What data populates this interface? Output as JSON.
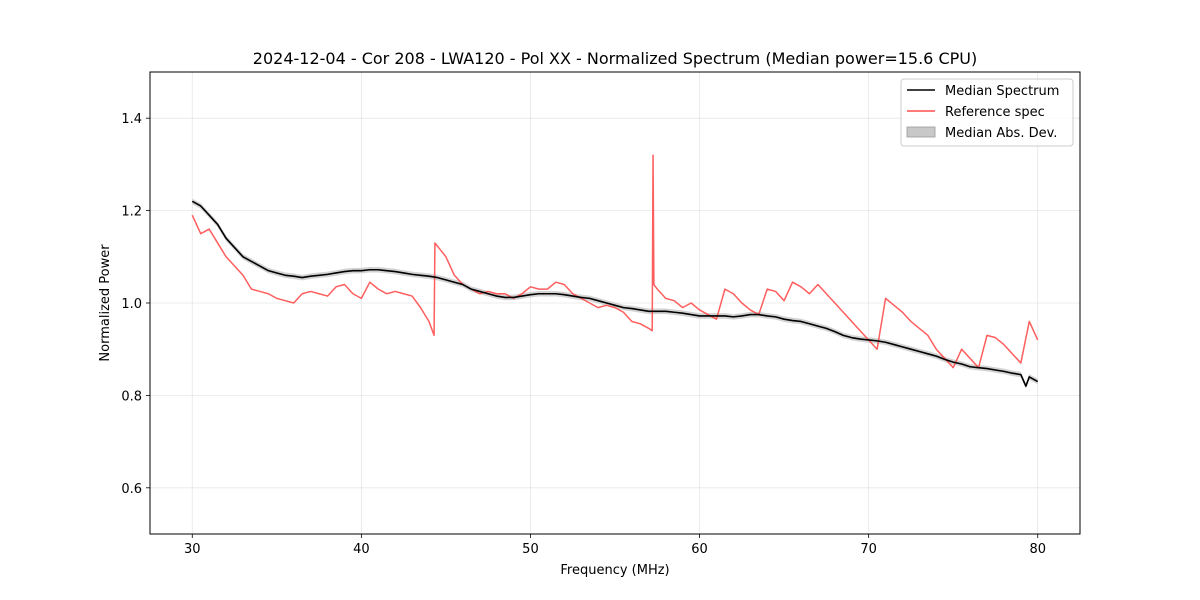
{
  "chart_data": {
    "type": "line",
    "title": "2024-12-04 - Cor 208 - LWA120 - Pol XX - Normalized Spectrum (Median power=15.6 CPU)",
    "xlabel": "Frequency (MHz)",
    "ylabel": "Normalized Power",
    "xlim": [
      27.5,
      82.5
    ],
    "ylim": [
      0.5,
      1.5
    ],
    "xticks": [
      30,
      40,
      50,
      60,
      70,
      80
    ],
    "yticks": [
      0.6,
      0.8,
      1.0,
      1.2,
      1.4
    ],
    "xtick_labels": [
      "30",
      "40",
      "50",
      "60",
      "70",
      "80"
    ],
    "ytick_labels": [
      "0.6",
      "0.8",
      "1.0",
      "1.2",
      "1.4"
    ],
    "grid": true,
    "legend_position": "top-right",
    "legend": [
      "Median Spectrum",
      "Reference spec",
      "Median Abs. Dev."
    ],
    "series": [
      {
        "name": "Median Spectrum",
        "color": "#000000",
        "x": [
          30.0,
          30.5,
          31.0,
          31.5,
          32.0,
          32.5,
          33.0,
          33.5,
          34.0,
          34.5,
          35.0,
          35.5,
          36.0,
          36.5,
          37.0,
          37.5,
          38.0,
          38.5,
          39.0,
          39.5,
          40.0,
          40.5,
          41.0,
          41.5,
          42.0,
          42.5,
          43.0,
          43.5,
          44.0,
          44.5,
          45.0,
          45.5,
          46.0,
          46.5,
          47.0,
          47.5,
          48.0,
          48.5,
          49.0,
          49.5,
          50.0,
          50.5,
          51.0,
          51.5,
          52.0,
          52.5,
          53.0,
          53.5,
          54.0,
          54.5,
          55.0,
          55.5,
          56.0,
          56.5,
          57.0,
          57.5,
          58.0,
          58.5,
          59.0,
          59.5,
          60.0,
          60.5,
          61.0,
          61.5,
          62.0,
          62.5,
          63.0,
          63.5,
          64.0,
          64.5,
          65.0,
          65.5,
          66.0,
          66.5,
          67.0,
          67.5,
          68.0,
          68.5,
          69.0,
          69.5,
          70.0,
          70.5,
          71.0,
          71.5,
          72.0,
          72.5,
          73.0,
          73.5,
          74.0,
          74.5,
          75.0,
          75.5,
          76.0,
          76.5,
          77.0,
          77.5,
          78.0,
          78.5,
          79.0,
          79.3,
          79.5,
          80.0
        ],
        "values": [
          1.22,
          1.21,
          1.19,
          1.17,
          1.14,
          1.12,
          1.1,
          1.09,
          1.08,
          1.07,
          1.065,
          1.06,
          1.058,
          1.055,
          1.058,
          1.06,
          1.062,
          1.065,
          1.068,
          1.07,
          1.07,
          1.072,
          1.072,
          1.07,
          1.068,
          1.065,
          1.062,
          1.06,
          1.058,
          1.055,
          1.05,
          1.045,
          1.04,
          1.03,
          1.025,
          1.02,
          1.015,
          1.012,
          1.012,
          1.015,
          1.018,
          1.02,
          1.02,
          1.02,
          1.018,
          1.015,
          1.012,
          1.01,
          1.005,
          1.0,
          0.995,
          0.99,
          0.988,
          0.985,
          0.982,
          0.982,
          0.982,
          0.98,
          0.978,
          0.975,
          0.972,
          0.972,
          0.972,
          0.972,
          0.97,
          0.972,
          0.975,
          0.975,
          0.972,
          0.97,
          0.965,
          0.962,
          0.96,
          0.955,
          0.95,
          0.945,
          0.938,
          0.93,
          0.925,
          0.922,
          0.92,
          0.918,
          0.915,
          0.91,
          0.905,
          0.9,
          0.895,
          0.89,
          0.885,
          0.878,
          0.872,
          0.868,
          0.862,
          0.86,
          0.858,
          0.855,
          0.852,
          0.848,
          0.845,
          0.82,
          0.84,
          0.83
        ]
      },
      {
        "name": "Reference spec",
        "color": "#ff4d4d",
        "x": [
          30.0,
          30.5,
          31.0,
          31.5,
          32.0,
          32.5,
          33.0,
          33.5,
          34.0,
          34.5,
          35.0,
          35.5,
          36.0,
          36.5,
          37.0,
          37.5,
          38.0,
          38.5,
          39.0,
          39.5,
          40.0,
          40.5,
          41.0,
          41.5,
          42.0,
          42.5,
          43.0,
          43.5,
          44.0,
          44.3,
          44.35,
          45.0,
          45.5,
          46.0,
          46.5,
          47.0,
          47.5,
          48.0,
          48.5,
          49.0,
          49.5,
          50.0,
          50.5,
          51.0,
          51.5,
          52.0,
          52.5,
          53.0,
          53.5,
          54.0,
          54.5,
          55.0,
          55.5,
          56.0,
          56.5,
          57.0,
          57.2,
          57.25,
          57.3,
          57.5,
          58.0,
          58.5,
          59.0,
          59.5,
          60.0,
          60.5,
          61.0,
          61.5,
          62.0,
          62.5,
          63.0,
          63.5,
          64.0,
          64.5,
          65.0,
          65.5,
          66.0,
          66.5,
          67.0,
          67.5,
          68.0,
          68.5,
          69.0,
          69.5,
          70.0,
          70.5,
          71.0,
          71.5,
          72.0,
          72.5,
          73.0,
          73.5,
          74.0,
          74.5,
          75.0,
          75.5,
          76.0,
          76.5,
          77.0,
          77.5,
          78.0,
          78.5,
          79.0,
          79.5,
          80.0
        ],
        "values": [
          1.19,
          1.15,
          1.16,
          1.13,
          1.1,
          1.08,
          1.06,
          1.03,
          1.025,
          1.02,
          1.01,
          1.005,
          1.0,
          1.02,
          1.025,
          1.02,
          1.015,
          1.035,
          1.04,
          1.02,
          1.01,
          1.045,
          1.03,
          1.02,
          1.025,
          1.02,
          1.015,
          0.99,
          0.96,
          0.93,
          1.13,
          1.1,
          1.06,
          1.04,
          1.03,
          1.02,
          1.025,
          1.02,
          1.02,
          1.01,
          1.02,
          1.035,
          1.03,
          1.03,
          1.045,
          1.04,
          1.02,
          1.01,
          1.0,
          0.99,
          0.995,
          0.99,
          0.98,
          0.96,
          0.955,
          0.945,
          0.94,
          1.32,
          1.04,
          1.03,
          1.01,
          1.005,
          0.99,
          1.0,
          0.985,
          0.975,
          0.965,
          1.03,
          1.02,
          1.0,
          0.985,
          0.975,
          1.03,
          1.025,
          1.005,
          1.045,
          1.035,
          1.02,
          1.04,
          1.02,
          1.0,
          0.98,
          0.96,
          0.94,
          0.92,
          0.9,
          1.01,
          0.995,
          0.98,
          0.96,
          0.945,
          0.93,
          0.9,
          0.88,
          0.86,
          0.9,
          0.88,
          0.86,
          0.93,
          0.925,
          0.91,
          0.89,
          0.87,
          0.96,
          0.92
        ]
      }
    ],
    "band": {
      "name": "Median Abs. Dev.",
      "color": "#c8c8c8",
      "width": 0.006
    }
  }
}
